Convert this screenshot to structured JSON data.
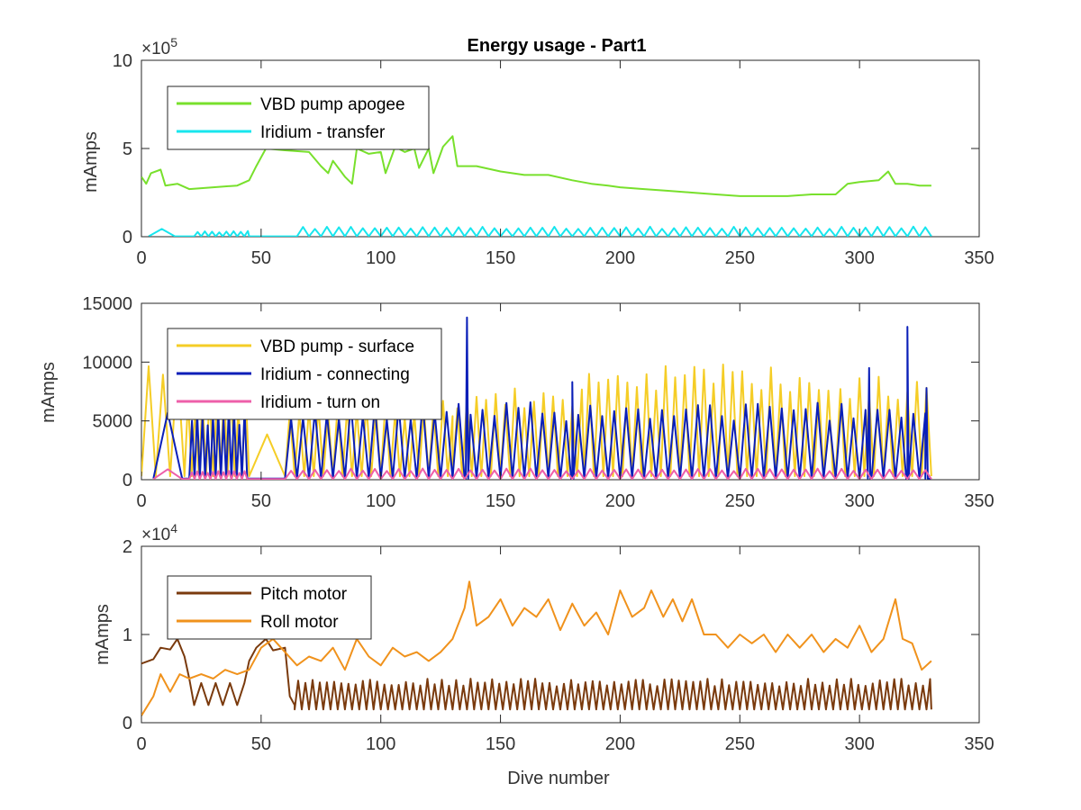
{
  "figure": {
    "title": "Energy usage - Part1",
    "xlabel": "Dive number"
  },
  "chart_data": [
    {
      "type": "line",
      "title": "Energy usage - Part1",
      "xlabel": "",
      "ylabel": "mAmps",
      "exponent_base": "×10",
      "exponent_power": "5",
      "xlim": [
        0,
        350
      ],
      "ylim": [
        0,
        10
      ],
      "xticks": [
        "0",
        "50",
        "100",
        "150",
        "200",
        "250",
        "300",
        "350"
      ],
      "yticks": [
        {
          "value": 0,
          "label": "0"
        },
        {
          "value": 5,
          "label": "5"
        },
        {
          "value": 10,
          "label": "10"
        }
      ],
      "grid": false,
      "legend_position": "top-left",
      "series": [
        {
          "name": "VBD pump apogee",
          "color": "#78e02c",
          "points": [
            [
              0,
              3.4
            ],
            [
              2,
              3.0
            ],
            [
              4,
              3.6
            ],
            [
              8,
              3.8
            ],
            [
              10,
              2.9
            ],
            [
              15,
              3.0
            ],
            [
              20,
              2.7
            ],
            [
              30,
              2.8
            ],
            [
              40,
              2.9
            ],
            [
              45,
              3.2
            ],
            [
              48,
              4.0
            ],
            [
              52,
              5.0
            ],
            [
              60,
              4.9
            ],
            [
              70,
              4.8
            ],
            [
              75,
              4.0
            ],
            [
              78,
              3.6
            ],
            [
              80,
              4.3
            ],
            [
              85,
              3.4
            ],
            [
              88,
              3.0
            ],
            [
              90,
              5.0
            ],
            [
              95,
              4.7
            ],
            [
              100,
              4.8
            ],
            [
              102,
              3.6
            ],
            [
              106,
              5.1
            ],
            [
              110,
              4.8
            ],
            [
              114,
              5.0
            ],
            [
              116,
              3.9
            ],
            [
              120,
              5.0
            ],
            [
              122,
              3.6
            ],
            [
              126,
              5.1
            ],
            [
              130,
              5.7
            ],
            [
              132,
              4.0
            ],
            [
              140,
              4.0
            ],
            [
              150,
              3.7
            ],
            [
              160,
              3.5
            ],
            [
              170,
              3.5
            ],
            [
              180,
              3.2
            ],
            [
              188,
              3.0
            ],
            [
              195,
              2.9
            ],
            [
              200,
              2.8
            ],
            [
              210,
              2.7
            ],
            [
              220,
              2.6
            ],
            [
              230,
              2.5
            ],
            [
              240,
              2.4
            ],
            [
              250,
              2.3
            ],
            [
              260,
              2.3
            ],
            [
              270,
              2.3
            ],
            [
              280,
              2.4
            ],
            [
              290,
              2.4
            ],
            [
              295,
              3.0
            ],
            [
              300,
              3.1
            ],
            [
              308,
              3.2
            ],
            [
              312,
              3.7
            ],
            [
              315,
              3.0
            ],
            [
              320,
              3.0
            ],
            [
              325,
              2.9
            ],
            [
              330,
              2.9
            ]
          ]
        },
        {
          "name": "Iridium - transfer",
          "color": "#17e6ee",
          "baseline": 0.02,
          "segments": [
            {
              "from": 3,
              "to": 14,
              "period": 11,
              "amplitude": 0.45
            },
            {
              "from": 22,
              "to": 45,
              "period": 3,
              "amplitude": 0.3
            },
            {
              "from": 65,
              "to": 330,
              "period": 5,
              "amplitude": 0.55
            }
          ]
        }
      ]
    },
    {
      "type": "line",
      "title": "",
      "xlabel": "",
      "ylabel": "mAmps",
      "xlim": [
        0,
        350
      ],
      "ylim": [
        0,
        15000
      ],
      "xticks": [
        "0",
        "50",
        "100",
        "150",
        "200",
        "250",
        "300",
        "350"
      ],
      "yticks": [
        {
          "value": 0,
          "label": "0"
        },
        {
          "value": 5000,
          "label": "5000"
        },
        {
          "value": 10000,
          "label": "10000"
        },
        {
          "value": 15000,
          "label": "15000"
        }
      ],
      "grid": false,
      "legend_position": "top-left",
      "series": [
        {
          "name": "VBD pump - surface",
          "color": "#f5cd26",
          "baseline": 300,
          "segments": [
            {
              "from": 0,
              "to": 18,
              "period": 6,
              "amplitude": 10000
            },
            {
              "from": 18,
              "to": 45,
              "period": 3,
              "amplitude": 7500
            },
            {
              "from": 45,
              "to": 60,
              "period": 15,
              "amplitude": 4500
            },
            {
              "from": 60,
              "to": 130,
              "period": 4,
              "amplitude": 6500
            },
            {
              "from": 130,
              "to": 185,
              "period": 4,
              "amplitude": 7500
            },
            {
              "from": 185,
              "to": 290,
              "period": 4,
              "amplitude": 9500
            },
            {
              "from": 290,
              "to": 330,
              "period": 4,
              "amplitude": 8500
            }
          ]
        },
        {
          "name": "Iridium - connecting",
          "color": "#0a1fb8",
          "baseline": 100,
          "segments": [
            {
              "from": 5,
              "to": 17,
              "period": 12,
              "amplitude": 6000
            },
            {
              "from": 20,
              "to": 45,
              "period": 2.2,
              "amplitude": 6000
            },
            {
              "from": 60,
              "to": 330,
              "period": 5,
              "amplitude": 6500
            }
          ],
          "spikes": [
            [
              136,
              13800
            ],
            [
              180,
              8300
            ],
            [
              320,
              13000
            ],
            [
              304,
              9500
            ],
            [
              328,
              7800
            ]
          ]
        },
        {
          "name": "Iridium - turn on",
          "color": "#ee5fa9",
          "baseline": 50,
          "segments": [
            {
              "from": 5,
              "to": 17,
              "period": 12,
              "amplitude": 900
            },
            {
              "from": 20,
              "to": 45,
              "period": 2.2,
              "amplitude": 700
            },
            {
              "from": 60,
              "to": 330,
              "period": 5,
              "amplitude": 900
            }
          ]
        }
      ]
    },
    {
      "type": "line",
      "title": "",
      "xlabel": "Dive number",
      "ylabel": "mAmps",
      "exponent_base": "×10",
      "exponent_power": "4",
      "xlim": [
        0,
        350
      ],
      "ylim": [
        0,
        2
      ],
      "xticks": [
        "0",
        "50",
        "100",
        "150",
        "200",
        "250",
        "300",
        "350"
      ],
      "yticks": [
        {
          "value": 0,
          "label": "0"
        },
        {
          "value": 1,
          "label": "1"
        },
        {
          "value": 2,
          "label": "2"
        }
      ],
      "grid": false,
      "legend_position": "top-left",
      "series": [
        {
          "name": "Pitch motor",
          "color": "#7a3a0d",
          "points": [
            [
              0,
              0.67
            ],
            [
              5,
              0.72
            ],
            [
              8,
              0.85
            ],
            [
              12,
              0.83
            ],
            [
              15,
              0.95
            ],
            [
              18,
              0.75
            ],
            [
              20,
              0.5
            ],
            [
              22,
              0.2
            ],
            [
              25,
              0.45
            ],
            [
              28,
              0.2
            ],
            [
              31,
              0.45
            ],
            [
              34,
              0.2
            ],
            [
              37,
              0.45
            ],
            [
              40,
              0.2
            ],
            [
              43,
              0.45
            ],
            [
              45,
              0.7
            ],
            [
              48,
              0.85
            ],
            [
              52,
              0.95
            ],
            [
              55,
              0.82
            ],
            [
              60,
              0.85
            ],
            [
              62,
              0.3
            ],
            [
              64,
              0.2
            ]
          ],
          "segments": [
            {
              "from": 64,
              "to": 330,
              "period": 3,
              "amplitude": 0.35,
              "baseline": 0.15
            }
          ]
        },
        {
          "name": "Roll motor",
          "color": "#f0921c",
          "points": [
            [
              0,
              0.08
            ],
            [
              5,
              0.3
            ],
            [
              8,
              0.55
            ],
            [
              12,
              0.35
            ],
            [
              16,
              0.55
            ],
            [
              20,
              0.5
            ],
            [
              25,
              0.55
            ],
            [
              30,
              0.5
            ],
            [
              35,
              0.6
            ],
            [
              40,
              0.55
            ],
            [
              45,
              0.6
            ],
            [
              50,
              0.85
            ],
            [
              55,
              0.95
            ],
            [
              60,
              0.8
            ],
            [
              65,
              0.65
            ],
            [
              70,
              0.75
            ],
            [
              75,
              0.7
            ],
            [
              80,
              0.85
            ],
            [
              85,
              0.6
            ],
            [
              90,
              0.95
            ],
            [
              95,
              0.75
            ],
            [
              100,
              0.65
            ],
            [
              105,
              0.85
            ],
            [
              110,
              0.75
            ],
            [
              115,
              0.8
            ],
            [
              120,
              0.7
            ],
            [
              125,
              0.8
            ],
            [
              130,
              0.95
            ],
            [
              135,
              1.3
            ],
            [
              137,
              1.6
            ],
            [
              140,
              1.1
            ],
            [
              145,
              1.2
            ],
            [
              150,
              1.4
            ],
            [
              155,
              1.1
            ],
            [
              160,
              1.3
            ],
            [
              165,
              1.2
            ],
            [
              170,
              1.4
            ],
            [
              175,
              1.05
            ],
            [
              180,
              1.35
            ],
            [
              185,
              1.1
            ],
            [
              190,
              1.25
            ],
            [
              195,
              1.0
            ],
            [
              200,
              1.5
            ],
            [
              205,
              1.2
            ],
            [
              210,
              1.3
            ],
            [
              213,
              1.5
            ],
            [
              218,
              1.2
            ],
            [
              222,
              1.4
            ],
            [
              226,
              1.15
            ],
            [
              230,
              1.4
            ],
            [
              235,
              1.0
            ],
            [
              240,
              1.0
            ],
            [
              245,
              0.85
            ],
            [
              250,
              1.0
            ],
            [
              255,
              0.9
            ],
            [
              260,
              1.0
            ],
            [
              265,
              0.8
            ],
            [
              270,
              1.0
            ],
            [
              275,
              0.85
            ],
            [
              280,
              1.0
            ],
            [
              285,
              0.8
            ],
            [
              290,
              0.95
            ],
            [
              295,
              0.85
            ],
            [
              300,
              1.1
            ],
            [
              305,
              0.8
            ],
            [
              310,
              0.95
            ],
            [
              315,
              1.4
            ],
            [
              318,
              0.95
            ],
            [
              322,
              0.9
            ],
            [
              326,
              0.6
            ],
            [
              330,
              0.7
            ]
          ]
        }
      ]
    }
  ]
}
